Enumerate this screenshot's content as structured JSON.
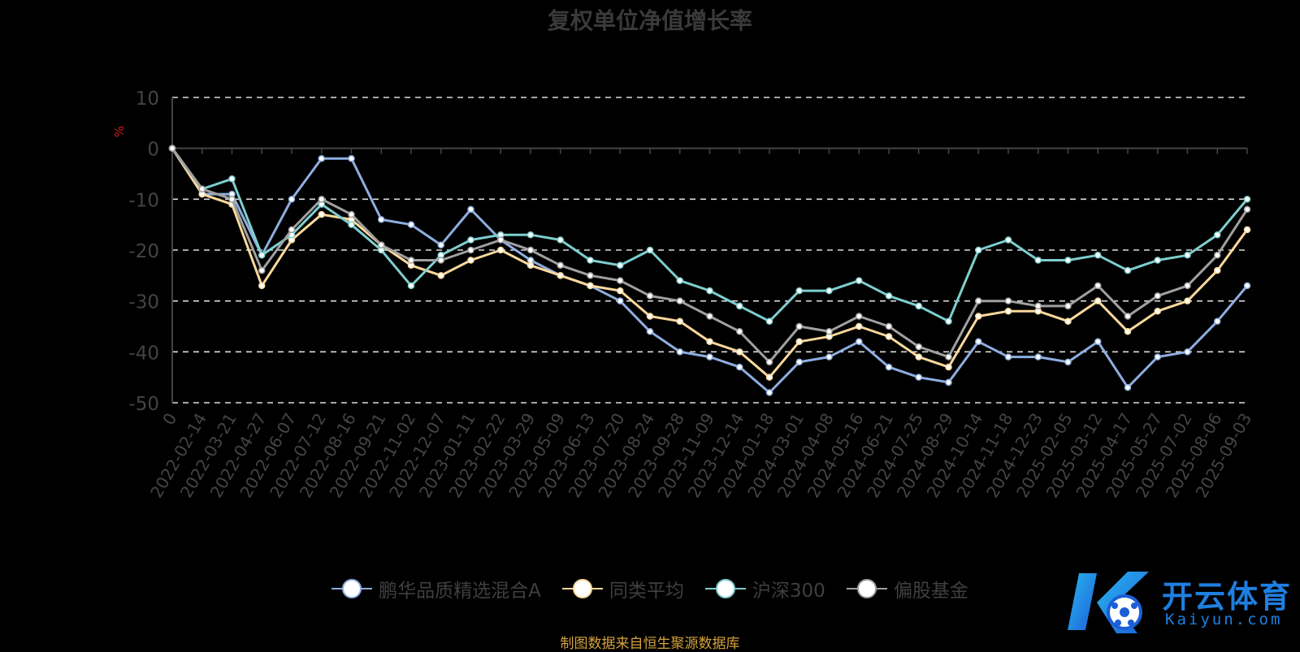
{
  "chart_data": {
    "type": "line",
    "title": "复权单位净值增长率",
    "ylabel": "%",
    "ylim": [
      -50,
      10
    ],
    "yticks": [
      10,
      0,
      -10,
      -20,
      -30,
      -40,
      -50
    ],
    "grid": true,
    "legend_position": "bottom",
    "xticks": [
      "0",
      "2022-02-14",
      "2022-03-21",
      "2022-04-27",
      "2022-06-07",
      "2022-07-12",
      "2022-08-16",
      "2022-09-21",
      "2022-11-02",
      "2022-12-07",
      "2023-01-11",
      "2023-02-22",
      "2023-03-29",
      "2023-05-09",
      "2023-06-13",
      "2023-07-20",
      "2023-08-24",
      "2023-09-28",
      "2023-11-09",
      "2023-12-14",
      "2024-01-18",
      "2024-03-01",
      "2024-04-08",
      "2024-05-16",
      "2024-06-21",
      "2024-07-25",
      "2024-08-29",
      "2024-10-14",
      "2024-11-18",
      "2024-12-23",
      "2025-02-05",
      "2025-03-12",
      "2025-04-17",
      "2025-05-27",
      "2025-07-02",
      "2025-08-06",
      "2025-09-03"
    ],
    "series": [
      {
        "name": "鹏华品质精选混合A",
        "color": "#8eaee0",
        "values": [
          0,
          -9,
          -9,
          -21,
          -10,
          -2,
          -2,
          -14,
          -15,
          -19,
          -12,
          -18,
          -22,
          -25,
          -27,
          -30,
          -36,
          -40,
          -41,
          -43,
          -48,
          -42,
          -41,
          -38,
          -43,
          -45,
          -46,
          -38,
          -41,
          -41,
          -42,
          -38,
          -47,
          -41,
          -40,
          -34,
          -27
        ]
      },
      {
        "name": "同类平均",
        "color": "#fbd89b",
        "values": [
          0,
          -9,
          -11,
          -27,
          -18,
          -13,
          -14,
          -19,
          -23,
          -25,
          -22,
          -20,
          -23,
          -25,
          -27,
          -28,
          -33,
          -34,
          -38,
          -40,
          -45,
          -38,
          -37,
          -35,
          -37,
          -41,
          -43,
          -33,
          -32,
          -32,
          -34,
          -30,
          -36,
          -32,
          -30,
          -24,
          -16
        ]
      },
      {
        "name": "沪深300",
        "color": "#7ecece",
        "values": [
          0,
          -8,
          -6,
          -21,
          -17,
          -11,
          -15,
          -20,
          -27,
          -21,
          -18,
          -17,
          -17,
          -18,
          -22,
          -23,
          -20,
          -26,
          -28,
          -31,
          -34,
          -28,
          -28,
          -26,
          -29,
          -31,
          -34,
          -20,
          -18,
          -22,
          -22,
          -21,
          -24,
          -22,
          -21,
          -17,
          -10
        ]
      },
      {
        "name": "偏股基金",
        "color": "#a0a0a0",
        "values": [
          0,
          -8,
          -10,
          -24,
          -16,
          -10,
          -13,
          -19,
          -22,
          -22,
          -20,
          -18,
          -20,
          -23,
          -25,
          -26,
          -29,
          -30,
          -33,
          -36,
          -42,
          -35,
          -36,
          -33,
          -35,
          -39,
          -41,
          -30,
          -30,
          -31,
          -31,
          -27,
          -33,
          -29,
          -27,
          -21,
          -12
        ]
      }
    ]
  },
  "source_note": "制图数据来自恒生聚源数据库",
  "watermark": {
    "cn": "开云体育",
    "en": "Kaiyun.com"
  }
}
